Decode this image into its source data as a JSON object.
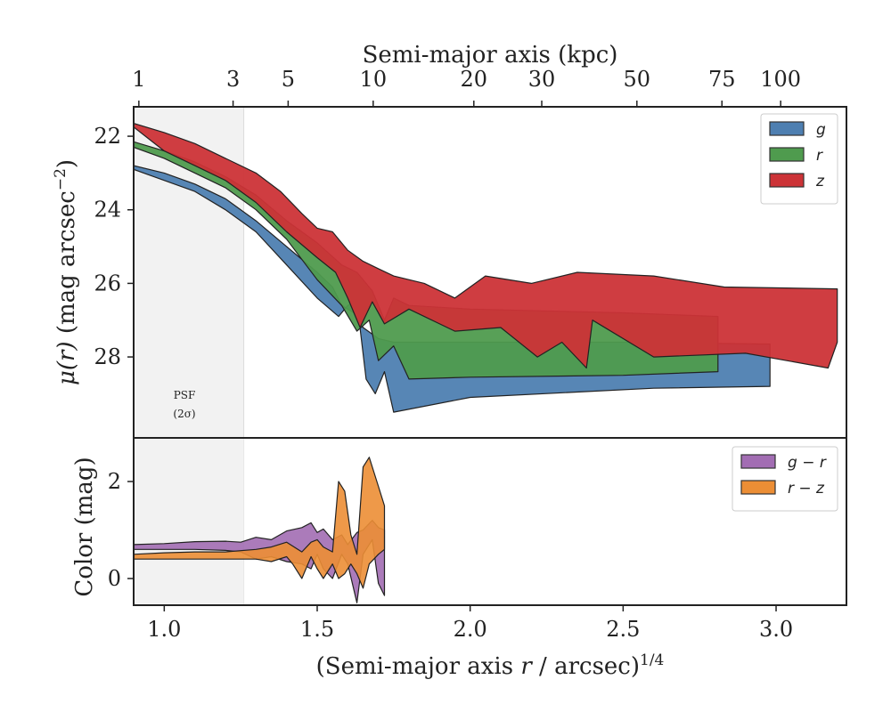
{
  "colors": {
    "g": "#4e7fb1",
    "r": "#4f9b4e",
    "z": "#cc3337",
    "g_minus_r": "#a26db3",
    "r_minus_z": "#ec8e35",
    "psf_shade": "#f2f2f2"
  },
  "top_axis": {
    "label": "Semi-major axis (kpc)",
    "ticks": [
      {
        "label": "1",
        "x": 0.917
      },
      {
        "label": "3",
        "x": 1.225
      },
      {
        "label": "5",
        "x": 1.405
      },
      {
        "label": "10",
        "x": 1.683
      },
      {
        "label": "20",
        "x": 2.012
      },
      {
        "label": "30",
        "x": 2.234
      },
      {
        "label": "50",
        "x": 2.545
      },
      {
        "label": "75",
        "x": 2.823
      },
      {
        "label": "100",
        "x": 3.015
      }
    ]
  },
  "psf": {
    "label_line1": "PSF",
    "label_line2": "(2σ)",
    "x_max": 1.26
  },
  "chart_data": [
    {
      "type": "area",
      "panel": "surface-brightness",
      "xlabel": "(Semi-major axis r / arcsec)^1/4",
      "ylabel": "μ(r) (mag arcsec⁻²)",
      "xlim": [
        0.9,
        3.23
      ],
      "ylim": [
        30.2,
        21.2
      ],
      "y_inverted": true,
      "yticks": [
        22,
        24,
        26,
        28
      ],
      "legend_position": "upper right",
      "series": [
        {
          "name": "g",
          "color_key": "g",
          "upper": [
            [
              0.9,
              22.8
            ],
            [
              1.0,
              23.0
            ],
            [
              1.1,
              23.3
            ],
            [
              1.2,
              23.7
            ],
            [
              1.3,
              24.3
            ],
            [
              1.4,
              25.0
            ],
            [
              1.5,
              25.7
            ],
            [
              1.55,
              26.1
            ],
            [
              1.58,
              26.6
            ],
            [
              1.62,
              26.8
            ],
            [
              1.65,
              27.2
            ],
            [
              1.7,
              27.5
            ],
            [
              1.75,
              27.6
            ],
            [
              2.0,
              27.6
            ],
            [
              2.5,
              27.6
            ],
            [
              2.98,
              27.65
            ]
          ],
          "lower": [
            [
              2.98,
              28.8
            ],
            [
              2.6,
              28.85
            ],
            [
              2.0,
              29.1
            ],
            [
              1.75,
              29.5
            ],
            [
              1.72,
              28.4
            ],
            [
              1.69,
              29.0
            ],
            [
              1.66,
              28.6
            ],
            [
              1.63,
              26.5
            ],
            [
              1.6,
              26.6
            ],
            [
              1.57,
              26.9
            ],
            [
              1.5,
              26.4
            ],
            [
              1.4,
              25.5
            ],
            [
              1.3,
              24.6
            ],
            [
              1.2,
              24.0
            ],
            [
              1.1,
              23.5
            ],
            [
              1.0,
              23.2
            ],
            [
              0.9,
              22.9
            ]
          ]
        },
        {
          "name": "r",
          "color_key": "r",
          "upper": [
            [
              0.9,
              22.15
            ],
            [
              1.0,
              22.4
            ],
            [
              1.1,
              22.7
            ],
            [
              1.2,
              23.1
            ],
            [
              1.3,
              23.6
            ],
            [
              1.4,
              24.3
            ],
            [
              1.5,
              24.9
            ],
            [
              1.58,
              25.5
            ],
            [
              1.63,
              25.7
            ],
            [
              1.68,
              26.2
            ],
            [
              1.72,
              27.0
            ],
            [
              1.75,
              26.4
            ],
            [
              1.8,
              26.6
            ],
            [
              2.0,
              26.7
            ],
            [
              2.5,
              26.8
            ],
            [
              2.81,
              26.9
            ]
          ],
          "lower": [
            [
              2.81,
              28.4
            ],
            [
              2.5,
              28.5
            ],
            [
              2.0,
              28.55
            ],
            [
              1.8,
              28.6
            ],
            [
              1.75,
              27.7
            ],
            [
              1.7,
              28.1
            ],
            [
              1.67,
              27.0
            ],
            [
              1.63,
              27.3
            ],
            [
              1.58,
              26.6
            ],
            [
              1.5,
              25.9
            ],
            [
              1.4,
              24.8
            ],
            [
              1.3,
              24.0
            ],
            [
              1.2,
              23.4
            ],
            [
              1.1,
              23.0
            ],
            [
              1.0,
              22.6
            ],
            [
              0.9,
              22.3
            ]
          ]
        },
        {
          "name": "z",
          "color_key": "z",
          "upper": [
            [
              0.9,
              21.65
            ],
            [
              1.0,
              21.9
            ],
            [
              1.1,
              22.2
            ],
            [
              1.2,
              22.6
            ],
            [
              1.3,
              23.0
            ],
            [
              1.38,
              23.5
            ],
            [
              1.45,
              24.1
            ],
            [
              1.5,
              24.5
            ],
            [
              1.55,
              24.6
            ],
            [
              1.6,
              25.1
            ],
            [
              1.65,
              25.4
            ],
            [
              1.7,
              25.6
            ],
            [
              1.75,
              25.8
            ],
            [
              1.85,
              26.0
            ],
            [
              1.95,
              26.4
            ],
            [
              2.05,
              25.8
            ],
            [
              2.2,
              26.0
            ],
            [
              2.35,
              25.7
            ],
            [
              2.6,
              25.8
            ],
            [
              2.83,
              26.1
            ],
            [
              3.2,
              26.15
            ]
          ],
          "lower": [
            [
              3.2,
              27.6
            ],
            [
              3.17,
              28.3
            ],
            [
              2.9,
              27.9
            ],
            [
              2.6,
              28.0
            ],
            [
              2.4,
              27.0
            ],
            [
              2.38,
              28.3
            ],
            [
              2.3,
              27.6
            ],
            [
              2.22,
              28.0
            ],
            [
              2.1,
              27.2
            ],
            [
              1.95,
              27.3
            ],
            [
              1.8,
              26.7
            ],
            [
              1.72,
              27.1
            ],
            [
              1.68,
              26.5
            ],
            [
              1.64,
              27.2
            ],
            [
              1.6,
              26.4
            ],
            [
              1.56,
              25.7
            ],
            [
              1.5,
              25.3
            ],
            [
              1.4,
              24.6
            ],
            [
              1.3,
              23.8
            ],
            [
              1.2,
              23.2
            ],
            [
              1.1,
              22.8
            ],
            [
              1.0,
              22.4
            ],
            [
              0.9,
              21.75
            ]
          ]
        }
      ]
    },
    {
      "type": "area",
      "panel": "color",
      "xlabel": "(Semi-major axis r / arcsec)^1/4",
      "ylabel": "Color (mag)",
      "xlim": [
        0.9,
        3.23
      ],
      "ylim": [
        -0.55,
        2.9
      ],
      "xticks": [
        1.0,
        1.5,
        2.0,
        2.5,
        3.0
      ],
      "xtick_labels": [
        "1.0",
        "1.5",
        "2.0",
        "2.5",
        "3.0"
      ],
      "yticks": [
        0,
        2
      ],
      "legend_position": "upper right",
      "series": [
        {
          "name": "g − r",
          "color_key": "g_minus_r",
          "upper": [
            [
              0.9,
              0.7
            ],
            [
              1.0,
              0.72
            ],
            [
              1.1,
              0.76
            ],
            [
              1.2,
              0.77
            ],
            [
              1.25,
              0.75
            ],
            [
              1.3,
              0.85
            ],
            [
              1.35,
              0.8
            ],
            [
              1.4,
              0.98
            ],
            [
              1.45,
              1.05
            ],
            [
              1.48,
              1.15
            ],
            [
              1.5,
              0.95
            ],
            [
              1.52,
              1.02
            ],
            [
              1.55,
              0.8
            ],
            [
              1.58,
              0.9
            ],
            [
              1.6,
              0.7
            ],
            [
              1.63,
              0.95
            ],
            [
              1.65,
              1.0
            ],
            [
              1.68,
              1.2
            ],
            [
              1.7,
              1.05
            ],
            [
              1.72,
              1.0
            ]
          ],
          "lower": [
            [
              1.72,
              -0.35
            ],
            [
              1.7,
              -0.1
            ],
            [
              1.68,
              0.8
            ],
            [
              1.65,
              0.5
            ],
            [
              1.63,
              -0.5
            ],
            [
              1.6,
              0.3
            ],
            [
              1.58,
              0.5
            ],
            [
              1.55,
              0.0
            ],
            [
              1.52,
              0.2
            ],
            [
              1.5,
              0.5
            ],
            [
              1.48,
              0.2
            ],
            [
              1.45,
              0.3
            ],
            [
              1.4,
              0.35
            ],
            [
              1.35,
              0.45
            ],
            [
              1.3,
              0.4
            ],
            [
              1.25,
              0.55
            ],
            [
              1.2,
              0.58
            ],
            [
              1.1,
              0.6
            ],
            [
              1.0,
              0.6
            ],
            [
              0.9,
              0.6
            ]
          ]
        },
        {
          "name": "r − z",
          "color_key": "r_minus_z",
          "upper": [
            [
              0.9,
              0.5
            ],
            [
              1.0,
              0.53
            ],
            [
              1.1,
              0.55
            ],
            [
              1.2,
              0.55
            ],
            [
              1.3,
              0.6
            ],
            [
              1.35,
              0.65
            ],
            [
              1.4,
              0.75
            ],
            [
              1.45,
              0.55
            ],
            [
              1.48,
              0.75
            ],
            [
              1.5,
              0.8
            ],
            [
              1.52,
              0.65
            ],
            [
              1.55,
              0.55
            ],
            [
              1.57,
              2.0
            ],
            [
              1.59,
              1.8
            ],
            [
              1.61,
              0.9
            ],
            [
              1.63,
              0.5
            ],
            [
              1.65,
              2.3
            ],
            [
              1.67,
              2.5
            ],
            [
              1.7,
              1.9
            ],
            [
              1.72,
              1.5
            ]
          ],
          "lower": [
            [
              1.72,
              0.6
            ],
            [
              1.7,
              0.5
            ],
            [
              1.67,
              0.3
            ],
            [
              1.65,
              -0.2
            ],
            [
              1.63,
              0.1
            ],
            [
              1.61,
              0.3
            ],
            [
              1.59,
              0.1
            ],
            [
              1.57,
              0.0
            ],
            [
              1.55,
              0.3
            ],
            [
              1.52,
              0.0
            ],
            [
              1.5,
              0.2
            ],
            [
              1.48,
              0.45
            ],
            [
              1.45,
              0.0
            ],
            [
              1.42,
              0.3
            ],
            [
              1.4,
              0.45
            ],
            [
              1.35,
              0.35
            ],
            [
              1.3,
              0.4
            ],
            [
              1.2,
              0.4
            ],
            [
              1.1,
              0.4
            ],
            [
              1.0,
              0.4
            ],
            [
              0.9,
              0.4
            ]
          ]
        }
      ]
    }
  ]
}
